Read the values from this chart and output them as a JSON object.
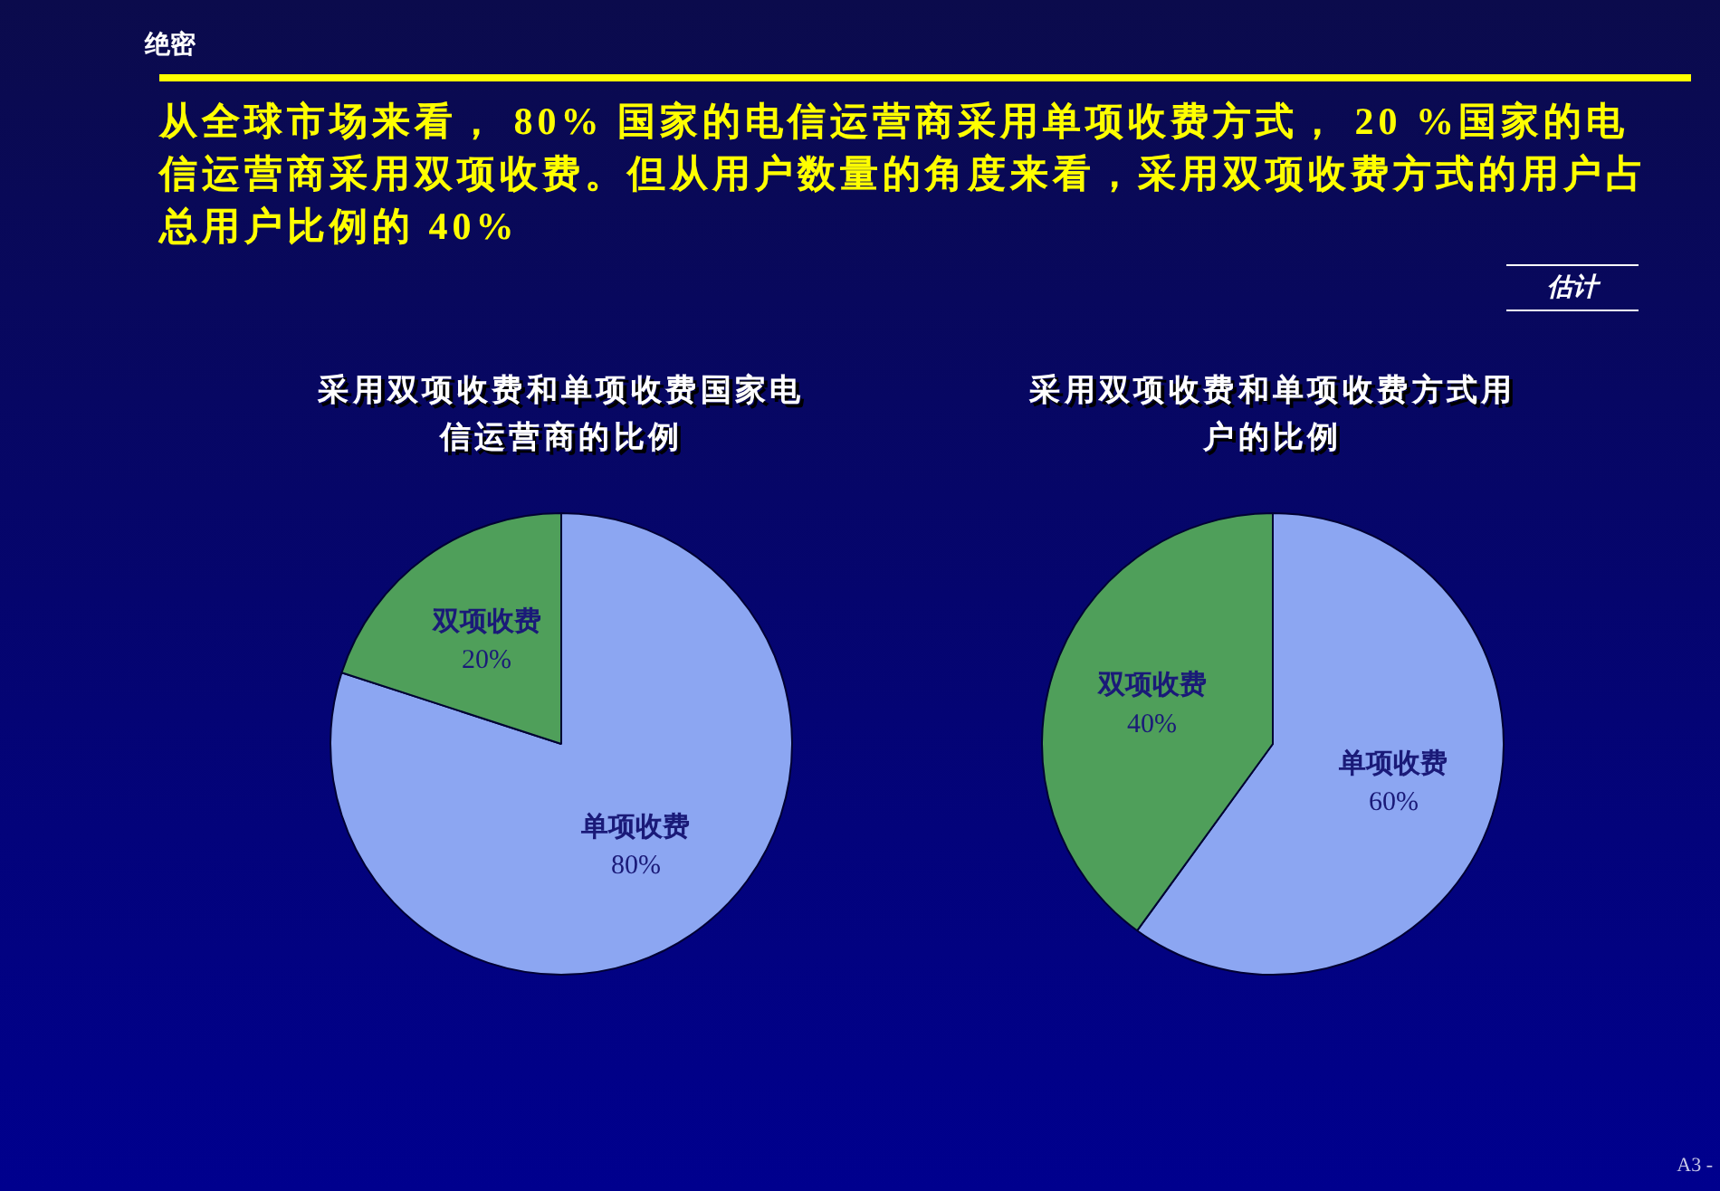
{
  "chart_data": [
    {
      "type": "other",
      "title": "从全球市场来看， 80% 国家的电信运营商采用单项收费方式， 20 %国家的电信运营商采用双项收费。但从用户数量的角度来看，采用双项收费方式的用户占总用户比例的 40%",
      "annotations": [
        "绝密",
        "估计",
        "A3 -"
      ]
    },
    {
      "type": "pie",
      "title": "采用双项收费和单项收费国家电信运营商的比例",
      "categories": [
        "单项收费",
        "双项收费"
      ],
      "values": [
        80,
        20
      ],
      "colors": [
        "#8ca6f2",
        "#4f9f5a"
      ],
      "value_labels": [
        "80%",
        "20%"
      ]
    },
    {
      "type": "pie",
      "title": "采用双项收费和单项收费方式用户的比例",
      "categories": [
        "单项收费",
        "双项收费"
      ],
      "values": [
        60,
        40
      ],
      "colors": [
        "#8ca6f2",
        "#4f9f5a"
      ],
      "value_labels": [
        "60%",
        "40%"
      ]
    }
  ]
}
